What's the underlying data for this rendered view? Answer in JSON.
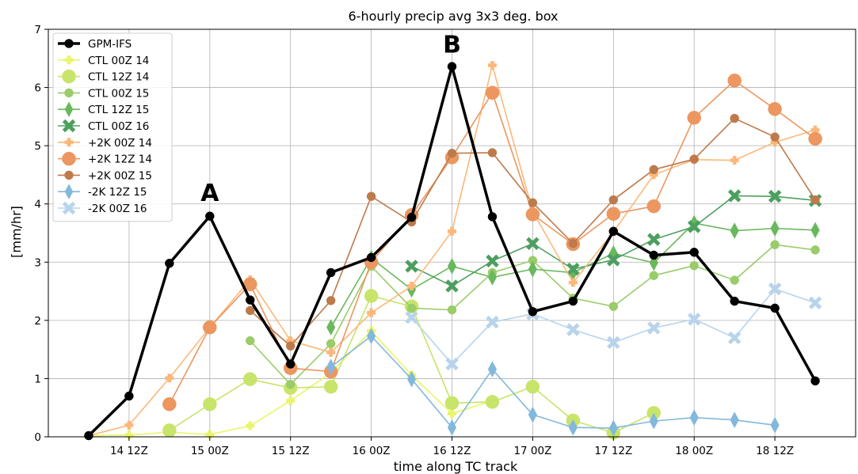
{
  "chart_data": {
    "type": "line",
    "title": "6-hourly precip avg 3x3 deg. box",
    "xlabel": "time along TC track",
    "ylabel": "[mm/hr]",
    "xlim": [
      -0.5,
      9.5
    ],
    "ylim": [
      0,
      7
    ],
    "yticks": [
      0,
      1,
      2,
      3,
      4,
      5,
      6,
      7
    ],
    "xticks": [
      {
        "v": 0.5,
        "label": "14 12Z"
      },
      {
        "v": 1.5,
        "label": "15 00Z"
      },
      {
        "v": 2.5,
        "label": "15 12Z"
      },
      {
        "v": 3.5,
        "label": "16 00Z"
      },
      {
        "v": 4.5,
        "label": "16 12Z"
      },
      {
        "v": 5.5,
        "label": "17 00Z"
      },
      {
        "v": 6.5,
        "label": "17 12Z"
      },
      {
        "v": 7.5,
        "label": "18 00Z"
      },
      {
        "v": 8.5,
        "label": "18 12Z"
      }
    ],
    "grid": true,
    "legend_position": "top-left",
    "annotations": [
      {
        "text": "A",
        "x": 1.5,
        "y": 4.05
      },
      {
        "text": "B",
        "x": 4.5,
        "y": 6.6
      }
    ],
    "x": [
      0,
      0.25,
      0.5,
      0.75,
      1,
      1.25,
      1.5,
      1.75,
      2,
      2.25,
      2.5,
      2.75,
      3,
      3.25,
      3.5,
      3.75,
      4,
      4.25,
      4.5,
      4.75,
      5,
      5.25,
      5.5,
      5.75,
      6,
      6.25,
      6.5,
      6.75,
      7,
      7.25,
      7.5,
      7.75,
      8,
      8.25,
      8.5,
      8.75,
      9,
      9.25,
      9.5
    ],
    "series": [
      {
        "name": "GPM-IFS",
        "color": "#000000",
        "marker": "circle",
        "width": 3.5,
        "msize": 5.5,
        "points": [
          [
            0,
            0.02
          ],
          [
            0.5,
            0.7
          ],
          [
            1,
            2.98
          ],
          [
            1.5,
            3.79
          ],
          [
            2,
            2.35
          ],
          [
            2.5,
            1.25
          ],
          [
            3,
            2.82
          ],
          [
            3.5,
            3.08
          ],
          [
            4,
            3.77
          ],
          [
            4.5,
            6.36
          ],
          [
            5,
            3.78
          ],
          [
            5.5,
            2.15
          ],
          [
            6,
            2.33
          ],
          [
            6.5,
            3.53
          ],
          [
            7,
            3.12
          ],
          [
            7.5,
            3.17
          ],
          [
            8,
            2.33
          ],
          [
            8.5,
            2.21
          ],
          [
            9,
            0.96
          ]
        ]
      },
      {
        "name": "CTL 00Z 14",
        "color": "#e9f56a",
        "marker": "plus",
        "width": 1.6,
        "msize": 5.5,
        "points": [
          [
            0,
            0.02
          ],
          [
            0.5,
            0.03
          ],
          [
            1,
            0.08
          ],
          [
            1.5,
            0.04
          ],
          [
            2,
            0.19
          ],
          [
            2.5,
            0.62
          ],
          [
            3,
            1.1
          ],
          [
            3.5,
            1.82
          ],
          [
            4,
            1.06
          ],
          [
            4.5,
            0.4
          ],
          [
            5,
            0.62
          ]
        ]
      },
      {
        "name": "CTL 12Z 14",
        "color": "#c8e46a",
        "marker": "circle",
        "width": 1.6,
        "msize": 8.5,
        "points": [
          [
            1,
            0.11
          ],
          [
            1.5,
            0.56
          ],
          [
            2,
            0.99
          ],
          [
            2.5,
            0.84
          ],
          [
            3,
            0.86
          ],
          [
            3.5,
            2.42
          ],
          [
            4,
            2.24
          ],
          [
            4.5,
            0.58
          ],
          [
            5,
            0.6
          ],
          [
            5.5,
            0.86
          ],
          [
            6,
            0.28
          ],
          [
            6.5,
            0.07
          ],
          [
            7,
            0.41
          ]
        ]
      },
      {
        "name": "CTL 00Z 15",
        "color": "#9acc6a",
        "marker": "circle",
        "width": 1.6,
        "msize": 5.5,
        "points": [
          [
            2,
            1.65
          ],
          [
            2.5,
            0.9
          ],
          [
            3,
            1.6
          ],
          [
            3.5,
            2.93
          ],
          [
            4,
            2.21
          ],
          [
            4.5,
            2.18
          ],
          [
            5,
            2.82
          ],
          [
            5.5,
            3.03
          ],
          [
            6,
            2.38
          ],
          [
            6.5,
            2.24
          ],
          [
            7,
            2.77
          ],
          [
            7.5,
            2.94
          ],
          [
            8,
            2.69
          ],
          [
            8.5,
            3.3
          ],
          [
            9,
            3.21
          ]
        ]
      },
      {
        "name": "CTL 12Z 15",
        "color": "#6ab85c",
        "marker": "diamond",
        "width": 1.6,
        "msize": 9,
        "points": [
          [
            3,
            1.88
          ],
          [
            3.5,
            3.07
          ],
          [
            4,
            2.53
          ],
          [
            4.5,
            2.93
          ],
          [
            5,
            2.74
          ],
          [
            5.5,
            2.88
          ],
          [
            6,
            2.82
          ],
          [
            6.5,
            3.15
          ],
          [
            7,
            2.99
          ],
          [
            7.5,
            3.67
          ],
          [
            8,
            3.54
          ],
          [
            8.5,
            3.58
          ],
          [
            9,
            3.55
          ]
        ]
      },
      {
        "name": "CTL 00Z 16",
        "color": "#4c9f5f",
        "marker": "x",
        "width": 1.6,
        "msize": 6.5,
        "points": [
          [
            4,
            2.93
          ],
          [
            4.5,
            2.59
          ],
          [
            5,
            3.02
          ],
          [
            5.5,
            3.32
          ],
          [
            6,
            2.88
          ],
          [
            6.5,
            3.04
          ],
          [
            7,
            3.39
          ],
          [
            7.5,
            3.61
          ],
          [
            8,
            4.14
          ],
          [
            8.5,
            4.13
          ],
          [
            9,
            4.06
          ]
        ]
      },
      {
        "name": "+2K 00Z 14",
        "color": "#fcb87a",
        "marker": "plus",
        "width": 1.6,
        "msize": 5.5,
        "points": [
          [
            0,
            0.02
          ],
          [
            0.5,
            0.2
          ],
          [
            1,
            1.01
          ],
          [
            1.5,
            1.88
          ],
          [
            2,
            2.7
          ],
          [
            2.5,
            1.65
          ],
          [
            3,
            1.45
          ],
          [
            3.5,
            2.13
          ],
          [
            4,
            2.59
          ],
          [
            4.5,
            3.53
          ],
          [
            5,
            6.38
          ],
          [
            5.5,
            3.87
          ],
          [
            6,
            2.65
          ],
          [
            6.5,
            3.52
          ],
          [
            7,
            4.5
          ],
          [
            7.5,
            4.76
          ],
          [
            8,
            4.75
          ],
          [
            8.5,
            5.06
          ],
          [
            9,
            5.27
          ]
        ]
      },
      {
        "name": "+2K 12Z 14",
        "color": "#ec9660",
        "marker": "circle",
        "width": 1.6,
        "msize": 8.5,
        "points": [
          [
            1,
            0.56
          ],
          [
            1.5,
            1.88
          ],
          [
            2,
            2.62
          ],
          [
            2.5,
            1.18
          ],
          [
            3,
            1.12
          ],
          [
            3.5,
            3.0
          ],
          [
            4,
            3.81
          ],
          [
            4.5,
            4.8
          ],
          [
            5,
            5.91
          ],
          [
            5.5,
            3.82
          ],
          [
            6,
            3.31
          ],
          [
            6.5,
            3.83
          ],
          [
            7,
            3.96
          ],
          [
            7.5,
            5.48
          ],
          [
            8,
            6.12
          ],
          [
            8.5,
            5.63
          ],
          [
            9,
            5.12
          ]
        ]
      },
      {
        "name": "+2K 00Z 15",
        "color": "#bf7a4c",
        "marker": "circle",
        "width": 1.6,
        "msize": 5.5,
        "points": [
          [
            2,
            2.17
          ],
          [
            2.5,
            1.56
          ],
          [
            3,
            2.34
          ],
          [
            3.5,
            4.13
          ],
          [
            4,
            3.69
          ],
          [
            4.5,
            4.87
          ],
          [
            5,
            4.88
          ],
          [
            5.5,
            4.02
          ],
          [
            6,
            3.32
          ],
          [
            6.5,
            4.07
          ],
          [
            7,
            4.59
          ],
          [
            7.5,
            4.77
          ],
          [
            8,
            5.47
          ],
          [
            8.5,
            5.15
          ],
          [
            9,
            4.07
          ]
        ]
      },
      {
        "name": "-2K 12Z 15",
        "color": "#82b8dc",
        "marker": "diamond",
        "width": 1.6,
        "msize": 9,
        "points": [
          [
            3,
            1.2
          ],
          [
            3.5,
            1.73
          ],
          [
            4,
            0.99
          ],
          [
            4.5,
            0.16
          ],
          [
            5,
            1.16
          ],
          [
            5.5,
            0.38
          ],
          [
            6,
            0.16
          ],
          [
            6.5,
            0.15
          ],
          [
            7,
            0.27
          ],
          [
            7.5,
            0.33
          ],
          [
            8,
            0.29
          ],
          [
            8.5,
            0.2
          ]
        ]
      },
      {
        "name": "-2K 00Z 16",
        "color": "#b8d4ec",
        "marker": "x",
        "width": 1.6,
        "msize": 6.5,
        "points": [
          [
            4,
            2.05
          ],
          [
            4.5,
            1.25
          ],
          [
            5,
            1.97
          ],
          [
            5.5,
            2.11
          ],
          [
            6,
            1.84
          ],
          [
            6.5,
            1.62
          ],
          [
            7,
            1.87
          ],
          [
            7.5,
            2.02
          ],
          [
            8,
            1.7
          ],
          [
            8.5,
            2.54
          ],
          [
            9,
            2.3
          ]
        ]
      }
    ]
  }
}
